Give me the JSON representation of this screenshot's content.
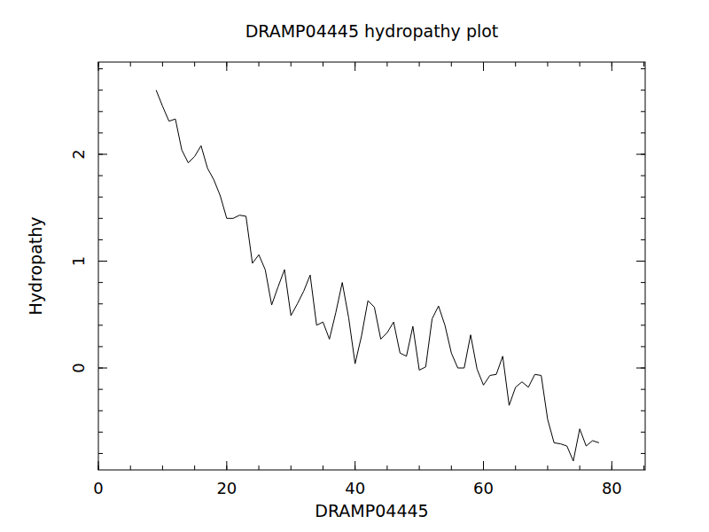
{
  "chart_data": {
    "type": "line",
    "title": "DRAMP04445 hydropathy plot",
    "x_label": "DRAMP04445",
    "y_label": "Hydropathy",
    "x": [
      9,
      10,
      11,
      12,
      13,
      14,
      15,
      16,
      17,
      18,
      19,
      20,
      21,
      22,
      23,
      24,
      25,
      26,
      27,
      28,
      29,
      30,
      31,
      32,
      33,
      34,
      35,
      36,
      37,
      38,
      39,
      40,
      41,
      42,
      43,
      44,
      45,
      46,
      47,
      48,
      49,
      50,
      51,
      52,
      53,
      54,
      55,
      56,
      57,
      58,
      59,
      60,
      61,
      62,
      63,
      64,
      65,
      66,
      67,
      68,
      69,
      70,
      71,
      72,
      73,
      74,
      75,
      76,
      77,
      78
    ],
    "values": [
      2.6,
      2.45,
      2.31,
      2.33,
      2.04,
      1.92,
      1.98,
      2.08,
      1.87,
      1.76,
      1.61,
      1.4,
      1.4,
      1.43,
      1.42,
      0.98,
      1.06,
      0.92,
      0.59,
      0.76,
      0.92,
      0.49,
      0.6,
      0.72,
      0.87,
      0.4,
      0.43,
      0.27,
      0.52,
      0.8,
      0.47,
      0.04,
      0.3,
      0.63,
      0.57,
      0.27,
      0.33,
      0.43,
      0.14,
      0.11,
      0.39,
      -0.02,
      0.01,
      0.46,
      0.58,
      0.4,
      0.14,
      0.0,
      0.0,
      0.31,
      -0.01,
      -0.16,
      -0.07,
      -0.06,
      0.11,
      -0.35,
      -0.18,
      -0.13,
      -0.18,
      -0.06,
      -0.07,
      -0.48,
      -0.7,
      -0.71,
      -0.73,
      -0.87,
      -0.57,
      -0.73,
      -0.68,
      -0.7
    ],
    "color": "#000000",
    "grid": false,
    "xlim": [
      0,
      85.2
    ],
    "xticks": [
      0,
      20,
      40,
      60,
      80
    ],
    "ylim": [
      -0.954,
      2.863
    ],
    "yticks": [
      0,
      1,
      2
    ]
  }
}
